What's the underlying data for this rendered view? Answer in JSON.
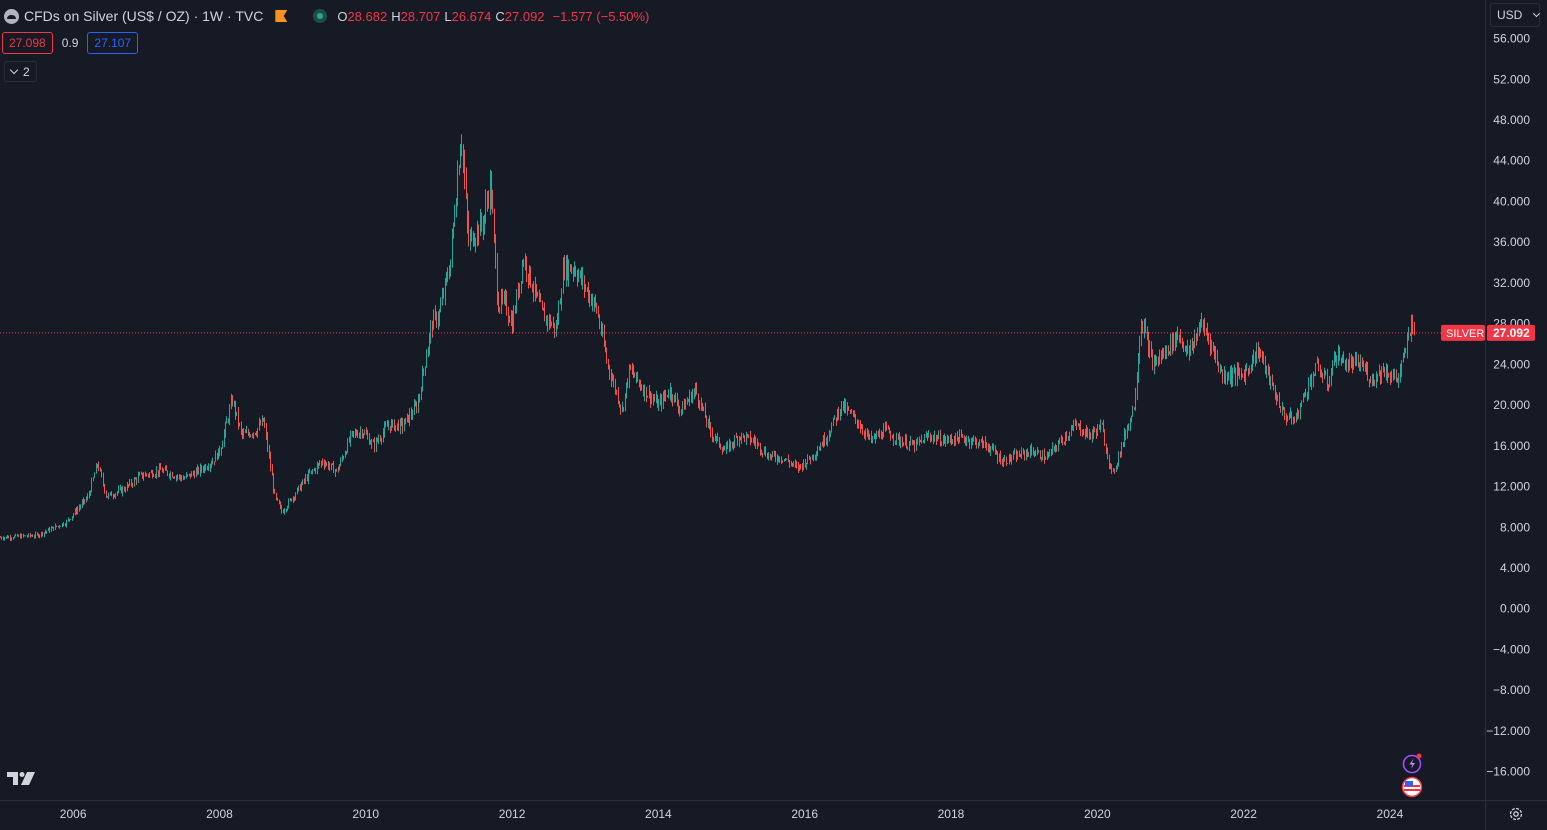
{
  "header": {
    "title": "CFDs on Silver (US$ / OZ) · 1W · TVC",
    "ohlc": {
      "o_label": "O",
      "o": "28.682",
      "h_label": "H",
      "h": "28.707",
      "l_label": "L",
      "l": "26.674",
      "c_label": "C",
      "c": "27.092",
      "change": "−1.577 (−5.50%)"
    },
    "bid": "27.098",
    "spread": "0.9",
    "ask": "27.107",
    "indicators_toggle": "2"
  },
  "currency_selector": "USD",
  "price_label": {
    "name": "SILVER",
    "value": "27.092"
  },
  "colors": {
    "background": "#161a25",
    "up": "#26a69a",
    "down": "#ef5350",
    "price_line": "#f23645",
    "text": "#d1d4dc"
  },
  "chart_data": {
    "type": "candlestick",
    "timeframe": "1W",
    "yticks": [
      "56.000",
      "52.000",
      "48.000",
      "44.000",
      "40.000",
      "36.000",
      "32.000",
      "28.000",
      "24.000",
      "20.000",
      "16.000",
      "12.000",
      "8.000",
      "4.000",
      "0.000",
      "−4.000",
      "−8.000",
      "−12.000",
      "−16.000"
    ],
    "xticks": [
      "2006",
      "2008",
      "2010",
      "2012",
      "2014",
      "2016",
      "2018",
      "2020",
      "2022",
      "2024"
    ],
    "ylim": [
      -18,
      59
    ],
    "xlim": [
      2005.0,
      2025.3
    ],
    "last_price": 27.092,
    "series": [
      {
        "points": [
          [
            2005.0,
            7.0
          ],
          [
            2005.5,
            7.2
          ],
          [
            2005.9,
            8.5
          ],
          [
            2006.2,
            11.0
          ],
          [
            2006.33,
            14.3
          ],
          [
            2006.45,
            11.0
          ],
          [
            2006.7,
            11.8
          ],
          [
            2006.9,
            13.0
          ],
          [
            2007.2,
            13.6
          ],
          [
            2007.5,
            12.8
          ],
          [
            2007.7,
            13.5
          ],
          [
            2007.9,
            14.5
          ],
          [
            2008.0,
            15.5
          ],
          [
            2008.17,
            20.5
          ],
          [
            2008.3,
            17.0
          ],
          [
            2008.5,
            17.5
          ],
          [
            2008.6,
            18.5
          ],
          [
            2008.75,
            11.0
          ],
          [
            2008.85,
            9.5
          ],
          [
            2008.95,
            10.5
          ],
          [
            2009.2,
            13.0
          ],
          [
            2009.4,
            14.5
          ],
          [
            2009.6,
            13.5
          ],
          [
            2009.8,
            17.0
          ],
          [
            2009.95,
            17.5
          ],
          [
            2010.1,
            16.0
          ],
          [
            2010.3,
            18.0
          ],
          [
            2010.5,
            18.0
          ],
          [
            2010.7,
            20.0
          ],
          [
            2010.9,
            28.0
          ],
          [
            2011.0,
            29.0
          ],
          [
            2011.15,
            34.0
          ],
          [
            2011.3,
            47.0
          ],
          [
            2011.4,
            36.0
          ],
          [
            2011.6,
            38.0
          ],
          [
            2011.7,
            42.0
          ],
          [
            2011.8,
            30.0
          ],
          [
            2011.9,
            30.0
          ],
          [
            2012.0,
            28.0
          ],
          [
            2012.15,
            34.5
          ],
          [
            2012.4,
            29.0
          ],
          [
            2012.6,
            27.5
          ],
          [
            2012.7,
            33.5
          ],
          [
            2012.85,
            33.5
          ],
          [
            2013.0,
            31.5
          ],
          [
            2013.15,
            29.5
          ],
          [
            2013.3,
            24.0
          ],
          [
            2013.5,
            19.5
          ],
          [
            2013.6,
            23.5
          ],
          [
            2013.8,
            21.5
          ],
          [
            2014.0,
            20.0
          ],
          [
            2014.15,
            21.5
          ],
          [
            2014.3,
            19.5
          ],
          [
            2014.5,
            21.5
          ],
          [
            2014.7,
            17.5
          ],
          [
            2014.9,
            15.5
          ],
          [
            2015.1,
            17.0
          ],
          [
            2015.3,
            16.5
          ],
          [
            2015.5,
            15.0
          ],
          [
            2015.7,
            14.8
          ],
          [
            2015.9,
            13.8
          ],
          [
            2016.1,
            15.0
          ],
          [
            2016.3,
            17.0
          ],
          [
            2016.5,
            20.0
          ],
          [
            2016.7,
            18.5
          ],
          [
            2016.9,
            16.5
          ],
          [
            2017.1,
            17.5
          ],
          [
            2017.3,
            16.5
          ],
          [
            2017.5,
            16.0
          ],
          [
            2017.7,
            17.0
          ],
          [
            2017.9,
            16.5
          ],
          [
            2018.1,
            16.8
          ],
          [
            2018.3,
            16.5
          ],
          [
            2018.5,
            16.0
          ],
          [
            2018.7,
            14.5
          ],
          [
            2018.9,
            15.0
          ],
          [
            2019.1,
            15.5
          ],
          [
            2019.3,
            14.8
          ],
          [
            2019.5,
            16.5
          ],
          [
            2019.7,
            18.0
          ],
          [
            2019.9,
            17.0
          ],
          [
            2020.05,
            18.0
          ],
          [
            2020.2,
            13.0
          ],
          [
            2020.35,
            16.5
          ],
          [
            2020.5,
            20.0
          ],
          [
            2020.6,
            28.5
          ],
          [
            2020.75,
            24.0
          ],
          [
            2020.9,
            25.0
          ],
          [
            2021.1,
            27.0
          ],
          [
            2021.25,
            25.0
          ],
          [
            2021.4,
            28.0
          ],
          [
            2021.5,
            27.0
          ],
          [
            2021.7,
            23.0
          ],
          [
            2021.9,
            23.0
          ],
          [
            2022.0,
            23.0
          ],
          [
            2022.2,
            25.5
          ],
          [
            2022.4,
            21.5
          ],
          [
            2022.55,
            19.0
          ],
          [
            2022.7,
            18.5
          ],
          [
            2022.85,
            21.5
          ],
          [
            2023.0,
            23.8
          ],
          [
            2023.15,
            22.0
          ],
          [
            2023.25,
            25.0
          ],
          [
            2023.4,
            24.0
          ],
          [
            2023.6,
            24.0
          ],
          [
            2023.75,
            22.5
          ],
          [
            2023.9,
            23.5
          ],
          [
            2024.0,
            23.0
          ],
          [
            2024.1,
            22.5
          ],
          [
            2024.2,
            25.0
          ],
          [
            2024.3,
            28.7
          ],
          [
            2024.33,
            27.092
          ]
        ]
      }
    ]
  }
}
